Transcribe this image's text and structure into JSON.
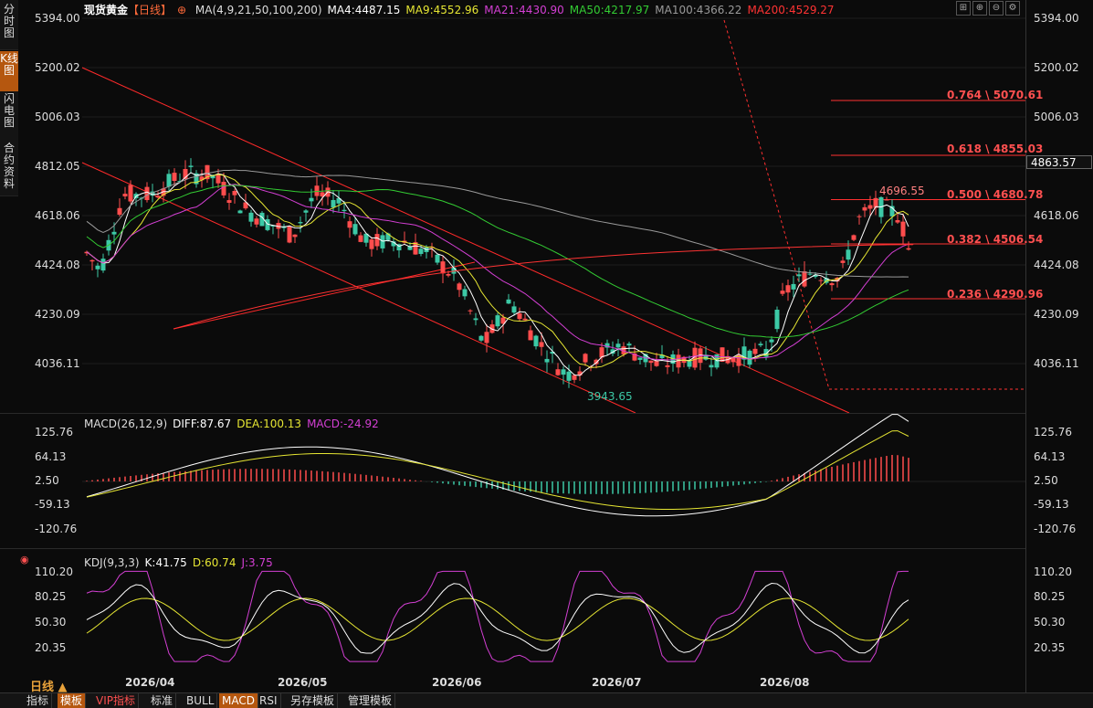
{
  "left_tabs": [
    {
      "label": "分时图",
      "active": false
    },
    {
      "label": "K线图",
      "active": true
    },
    {
      "label": "闪电图",
      "active": false
    },
    {
      "label": "合约资料",
      "active": false
    }
  ],
  "header": {
    "instrument": "现货黄金",
    "period_tag": "【日线】",
    "ma_params": "MA(4,9,21,50,100,200)",
    "ma4": "MA4:4487.15",
    "ma9": "MA9:4552.96",
    "ma21": "MA21:4430.90",
    "ma50": "MA50:4217.97",
    "ma100": "MA100:4366.22",
    "ma200": "MA200:4529.27"
  },
  "colors": {
    "ma4": "#ffffff",
    "ma9": "#e6e633",
    "ma21": "#d33fd3",
    "ma50": "#33cc33",
    "ma100": "#9a9a9a",
    "ma200": "#ff3333",
    "up": "#ff4d4d",
    "down": "#3cc9a6",
    "accent": "#b5570f"
  },
  "price_axis": [
    "5394.00",
    "5200.02",
    "5006.03",
    "4812.05",
    "4618.06",
    "4424.08",
    "4230.09",
    "4036.11"
  ],
  "current_price": "4863.57",
  "fib_levels": [
    {
      "label": "0.764 \\ 5070.61",
      "value": 5070.61
    },
    {
      "label": "0.618 \\ 4855.03",
      "value": 4855.03
    },
    {
      "label": "0.500 \\ 4680.78",
      "value": 4680.78
    },
    {
      "label": "0.382 \\ 4506.54",
      "value": 4506.54
    },
    {
      "label": "0.236 \\ 4290.96",
      "value": 4290.96
    }
  ],
  "annotations": {
    "high": "4696.55",
    "low": "3943.65"
  },
  "macd": {
    "title": "MACD(26,12,9)",
    "diff": "DIFF:87.67",
    "dea": "DEA:100.13",
    "macd": "MACD:-24.92",
    "axis": [
      "125.76",
      "64.13",
      "2.50",
      "-59.13",
      "-120.76"
    ]
  },
  "kdj": {
    "title": "KDJ(9,3,3)",
    "k": "K:41.75",
    "d": "D:60.74",
    "j": "J:3.75",
    "axis": [
      "110.20",
      "80.25",
      "50.30",
      "20.35"
    ]
  },
  "x_axis": [
    "2026/04",
    "2026/05",
    "2026/06",
    "2026/07",
    "2026/08"
  ],
  "period_label": "日线 ▲",
  "bottom_tabs": [
    {
      "label": "指标",
      "active": false
    },
    {
      "label": "模板",
      "active": true
    },
    {
      "label": "VIP指标",
      "active": false
    },
    {
      "label": "标准",
      "active": false
    },
    {
      "label": "BULL",
      "active": false
    },
    {
      "label": "MACD",
      "active": true
    },
    {
      "label": "RSI",
      "active": false
    },
    {
      "label": "另存模板",
      "active": false
    },
    {
      "label": "管理模板",
      "active": false
    }
  ]
}
